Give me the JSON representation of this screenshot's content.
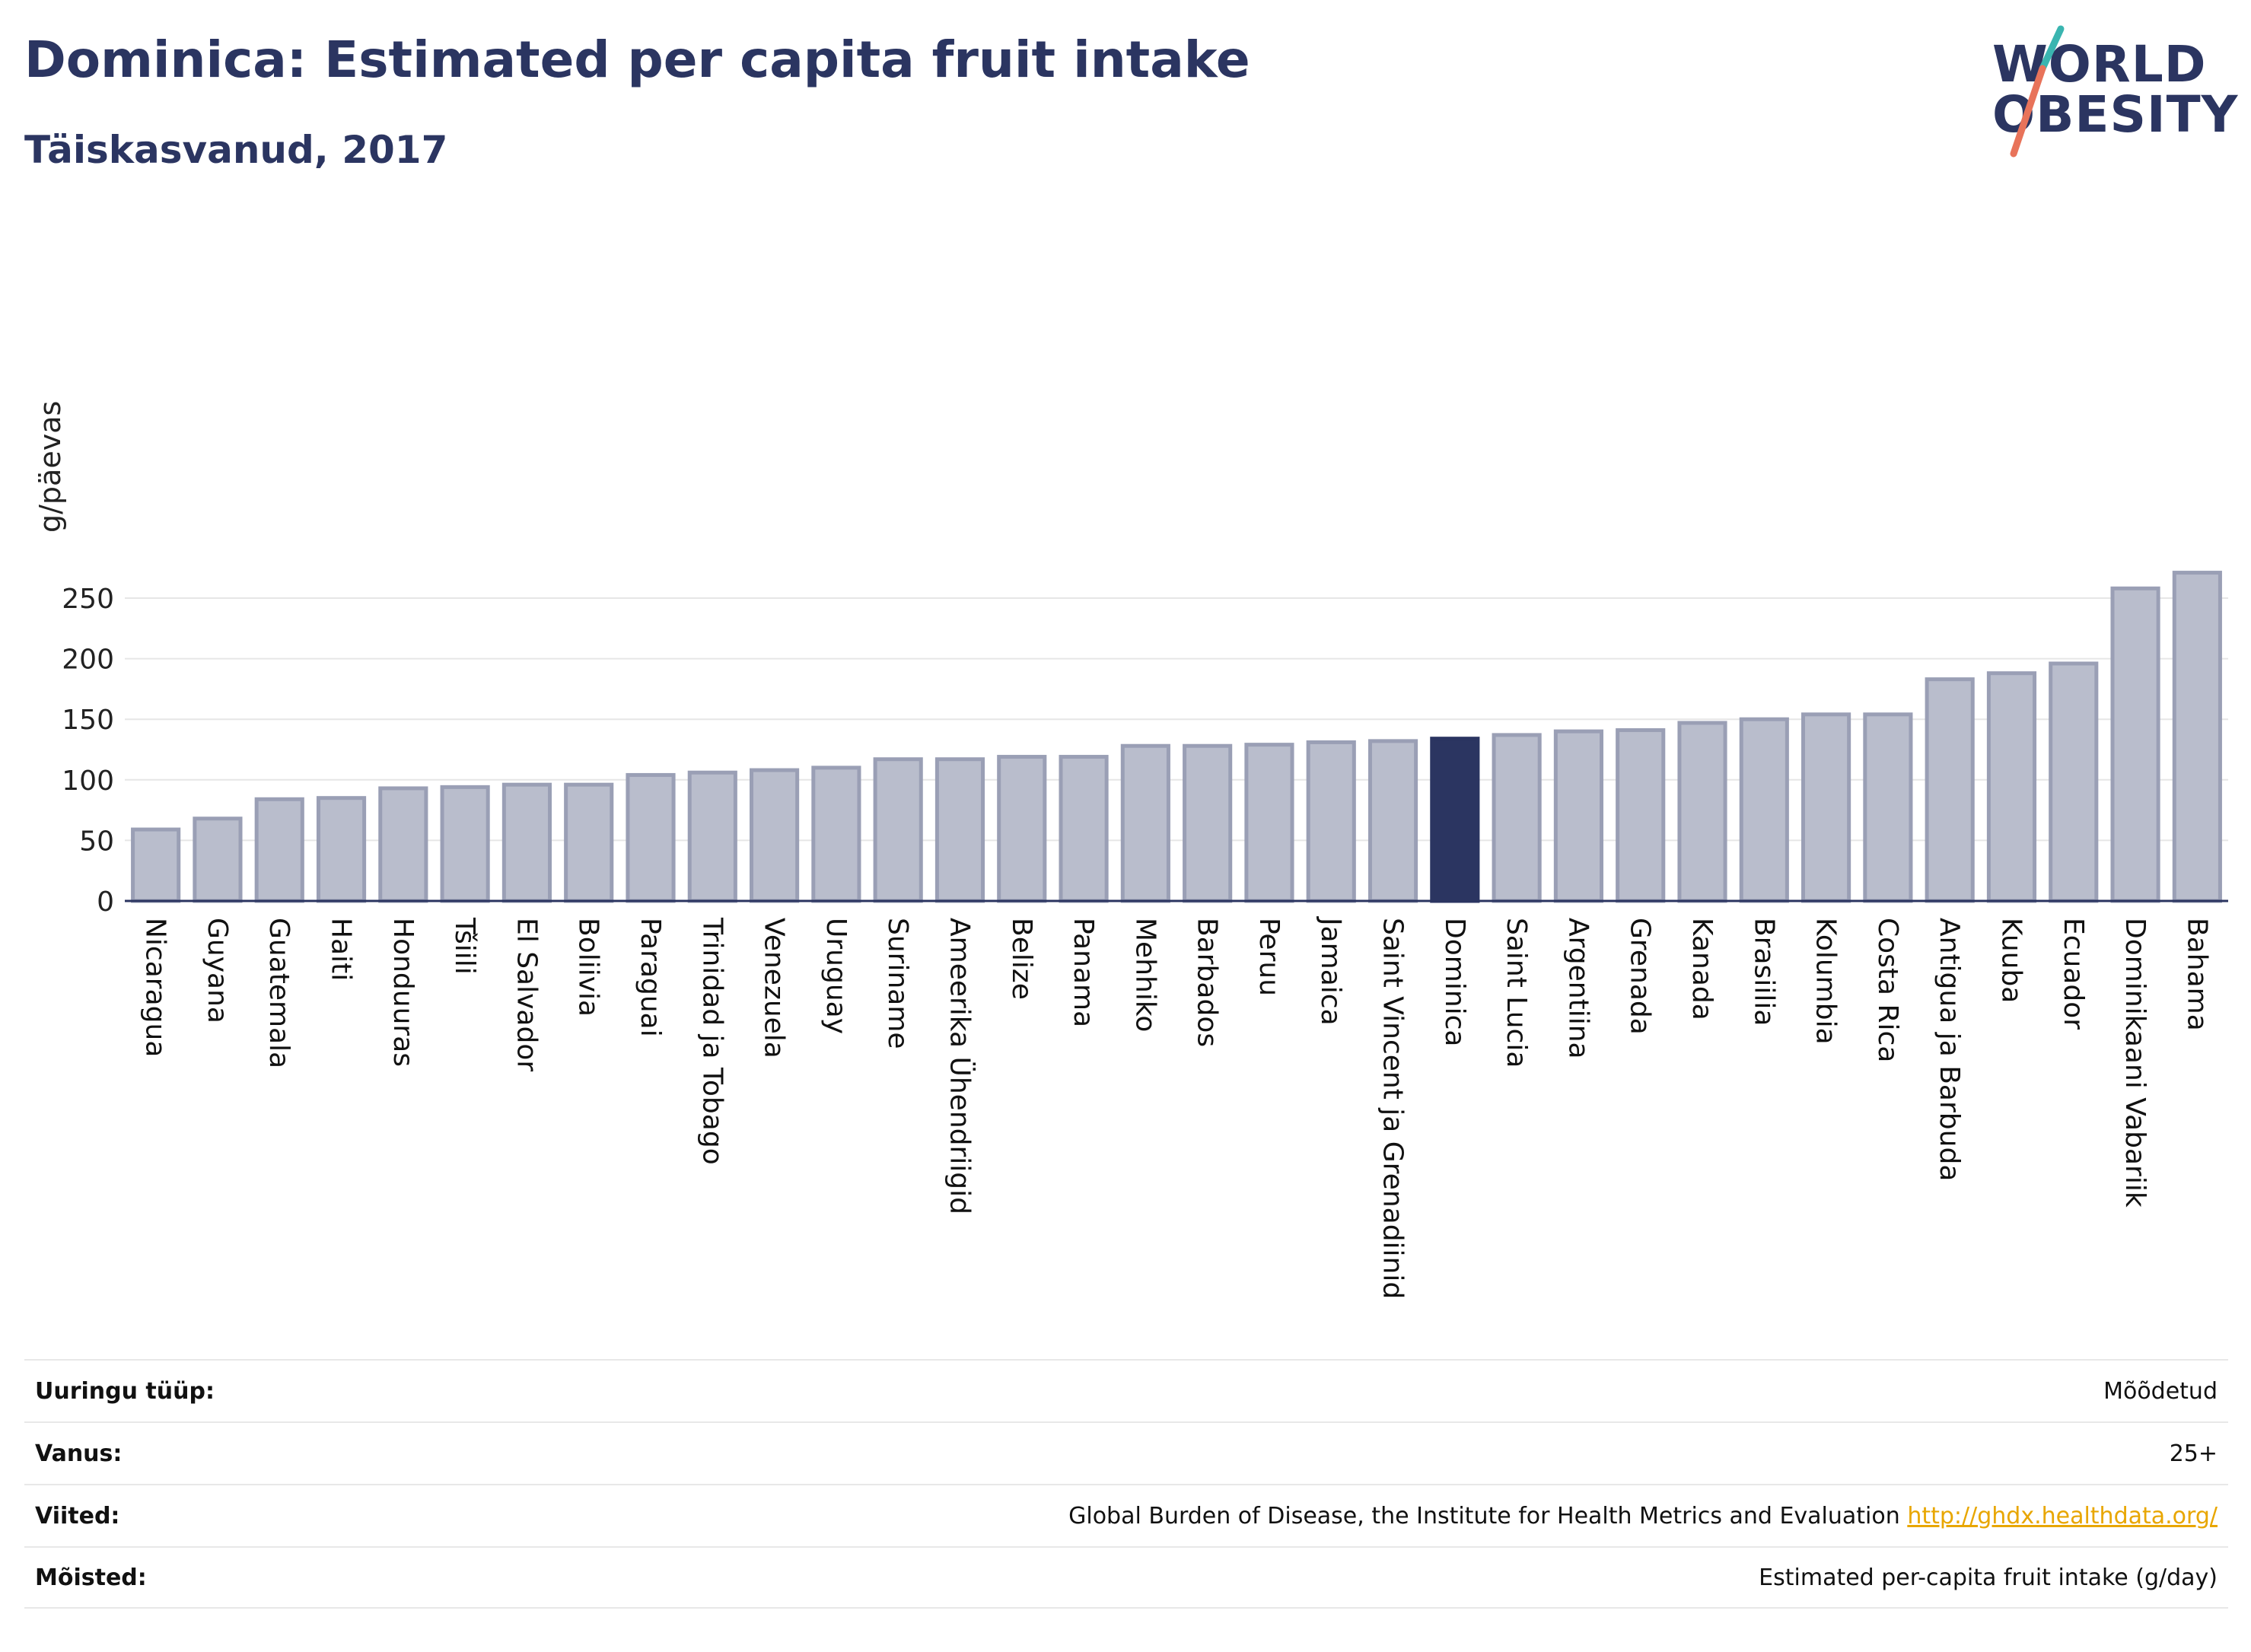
{
  "header": {
    "title": "Dominica: Estimated per capita fruit intake",
    "subtitle": "Täiskasvanud, 2017"
  },
  "logo": {
    "line1": "WORLD",
    "line2": "OBESITY",
    "accent_colors": [
      "#3ab5b0",
      "#e8735a"
    ]
  },
  "chart_data": {
    "type": "bar",
    "ylabel": "g/päevas",
    "ylim": [
      0,
      275
    ],
    "yticks": [
      0,
      50,
      100,
      150,
      200,
      250
    ],
    "grid": true,
    "highlight": "Dominica",
    "colors": {
      "bar": "#b9bdcc",
      "bar_border": "#9a9fb5",
      "highlight": "#2b3561"
    },
    "categories": [
      "Nicaragua",
      "Guyana",
      "Guatemala",
      "Haiti",
      "Honduuras",
      "Tšiili",
      "El Salvador",
      "Boliivia",
      "Paraguai",
      "Trinidad ja Tobago",
      "Venezuela",
      "Uruguay",
      "Suriname",
      "Ameerika Ühendriigid",
      "Belize",
      "Panama",
      "Mehhiko",
      "Barbados",
      "Peruu",
      "Jamaica",
      "Saint Vincent ja Grenadiinid",
      "Dominica",
      "Saint Lucia",
      "Argentiina",
      "Grenada",
      "Kanada",
      "Brasiilia",
      "Kolumbia",
      "Costa Rica",
      "Antigua ja Barbuda",
      "Kuuba",
      "Ecuador",
      "Dominikaani Vabariik",
      "Bahama"
    ],
    "values": [
      59,
      68,
      84,
      85,
      93,
      94,
      96,
      96,
      104,
      106,
      108,
      110,
      117,
      117,
      119,
      119,
      128,
      128,
      129,
      131,
      132,
      134,
      137,
      140,
      141,
      147,
      150,
      154,
      154,
      183,
      188,
      196,
      258,
      271
    ]
  },
  "info": [
    {
      "key": "Uuringu tüüp:",
      "value": "Mõõdetud"
    },
    {
      "key": "Vanus:",
      "value": "25+"
    },
    {
      "key": "Viited:",
      "value": "Global Burden of Disease, the Institute for Health Metrics and Evaluation",
      "link": "http://ghdx.healthdata.org/"
    },
    {
      "key": "Mõisted:",
      "value": "Estimated per-capita fruit intake (g/day)"
    }
  ]
}
